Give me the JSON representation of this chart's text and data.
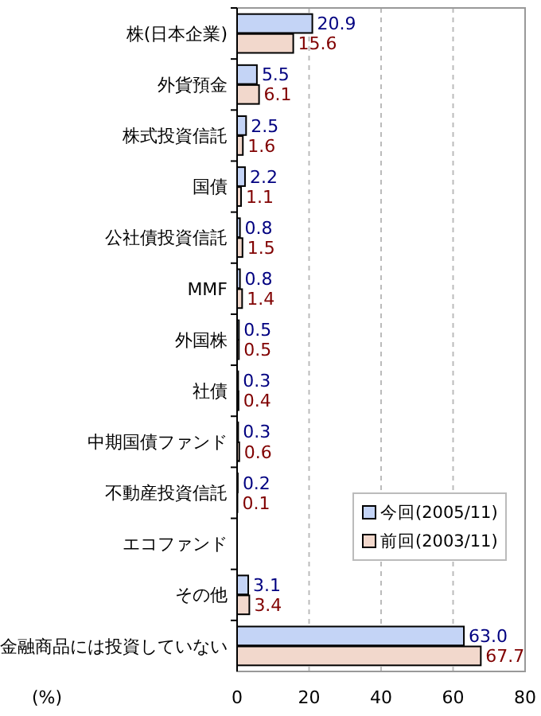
{
  "chart_data": {
    "type": "bar",
    "orientation": "horizontal",
    "xlabel": "(%)",
    "categories": [
      "株(日本企業)",
      "外貨預金",
      "株式投資信託",
      "国債",
      "公社債投資信託",
      "MMF",
      "外国株",
      "社債",
      "中期国債ファンド",
      "不動産投資信託",
      "エコファンド",
      "その他",
      "金融商品には投資していない"
    ],
    "series": [
      {
        "name": "今回(2005/11)",
        "color": "#c4d4f6",
        "values": [
          20.9,
          5.5,
          2.5,
          2.2,
          0.8,
          0.8,
          0.5,
          0.3,
          0.3,
          0.2,
          null,
          3.1,
          63.0
        ],
        "value_labels": [
          "20.9",
          "5.5",
          "2.5",
          "2.2",
          "0.8",
          "0.8",
          "0.5",
          "0.3",
          "0.3",
          "0.2",
          null,
          "3.1",
          "63.0"
        ]
      },
      {
        "name": "前回(2003/11)",
        "color": "#f2d8cc",
        "values": [
          15.6,
          6.1,
          1.6,
          1.1,
          1.5,
          1.4,
          0.5,
          0.4,
          0.6,
          0.1,
          null,
          3.4,
          67.7
        ],
        "value_labels": [
          "15.6",
          "6.1",
          "1.6",
          "1.1",
          "1.5",
          "1.4",
          "0.5",
          "0.4",
          "0.6",
          "0.1",
          null,
          "3.4",
          "67.7"
        ]
      }
    ],
    "xlim": [
      0,
      80
    ],
    "xticks": [
      0,
      20,
      40,
      60,
      80
    ],
    "grid": "x",
    "legend": "bottom right"
  }
}
